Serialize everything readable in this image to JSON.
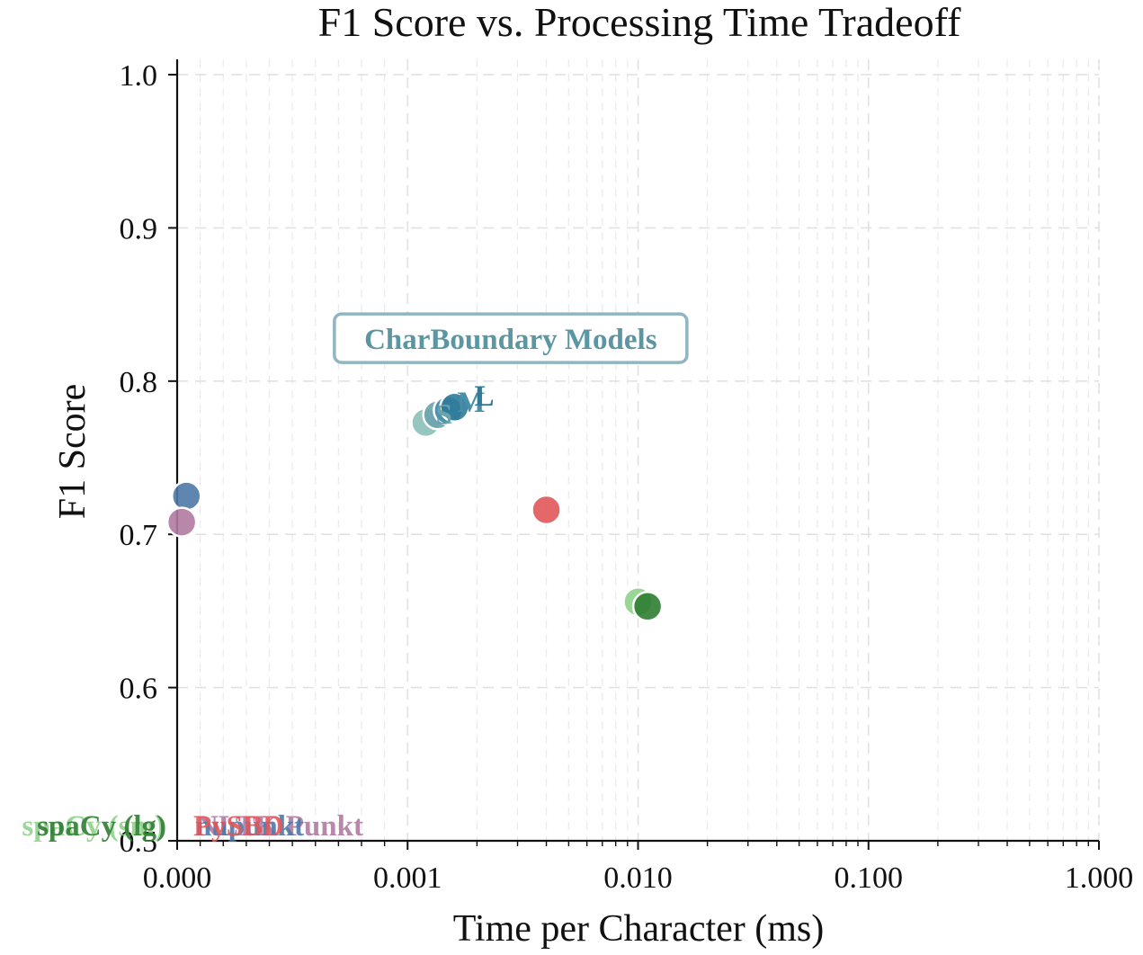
{
  "chart_data": {
    "type": "scatter",
    "title": "F1 Score vs. Processing Time Tradeoff",
    "xlabel": "Time per Character (ms)",
    "ylabel": "F1 Score",
    "xscale": "symlog",
    "xlim": [
      0,
      1
    ],
    "ylim": [
      0.5,
      1.01
    ],
    "xticks": [
      0,
      0.001,
      0.01,
      0.1,
      1
    ],
    "xtick_labels": [
      "0.000",
      "0.001",
      "0.010",
      "0.100",
      "1.000"
    ],
    "yticks": [
      0.6,
      0.7,
      0.8,
      0.9,
      1.0
    ],
    "ytick_labels": [
      "0.6",
      "0.7",
      "0.8",
      "0.9",
      "1.0"
    ],
    "y_bottom_label": "0.5",
    "grid": true,
    "annotation": {
      "text": "CharBoundary Models",
      "x": 0.0028,
      "y": 0.828
    },
    "series": [
      {
        "name": "",
        "label": "",
        "x": 0.0012,
        "y": 0.773,
        "color": "#8cc0b8"
      },
      {
        "name": "",
        "label": "S",
        "x": 0.00135,
        "y": 0.778,
        "color": "#6aa2ad"
      },
      {
        "name": "",
        "label": "M",
        "x": 0.0015,
        "y": 0.781,
        "color": "#4a8fa8"
      },
      {
        "name": "",
        "label": "L",
        "x": 0.0016,
        "y": 0.783,
        "color": "#2e7a9a"
      },
      {
        "name": "",
        "label": "",
        "x": 4e-05,
        "y": 0.725,
        "color": "#4e78a8"
      },
      {
        "name": "",
        "label": "",
        "x": 2e-05,
        "y": 0.708,
        "color": "#b07aa1"
      },
      {
        "name": "",
        "label": "",
        "x": 0.004,
        "y": 0.716,
        "color": "#e15759"
      },
      {
        "name": "",
        "label": "",
        "x": 0.01,
        "y": 0.656,
        "color": "#8fd18a"
      },
      {
        "name": "",
        "label": "",
        "x": 0.011,
        "y": 0.653,
        "color": "#2e7d32"
      }
    ],
    "bottom_labels": [
      {
        "text": "spaCy (sm)",
        "color": "#8fd18a",
        "align": "end",
        "anchor_x": 0.0,
        "offset": -14
      },
      {
        "text": "spaCy (lg)",
        "color": "#2e7d32",
        "align": "end",
        "anchor_x": 0.0,
        "offset": -12
      },
      {
        "text": "NLTK Punkt",
        "color": "#b07aa1",
        "align": "start",
        "anchor_x": 0.0,
        "offset": 22
      },
      {
        "text": "nupunkt",
        "color": "#4e78a8",
        "align": "start",
        "anchor_x": 0.0,
        "offset": 20
      },
      {
        "text": "PySBD",
        "color": "#e15759",
        "align": "start",
        "anchor_x": 0.0,
        "offset": 18
      }
    ]
  }
}
